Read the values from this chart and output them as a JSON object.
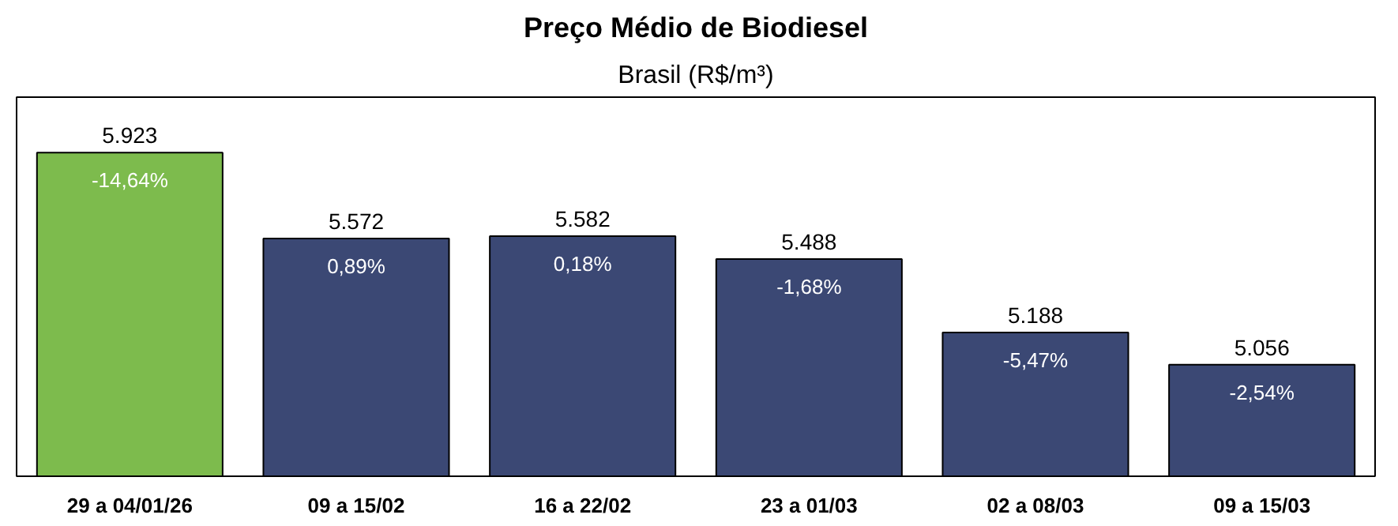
{
  "chart_data": {
    "type": "bar",
    "title": "Preço Médio de Biodiesel",
    "subtitle": "Brasil (R$/m³)",
    "categories": [
      "29 a 04/01/26",
      "09 a 15/02",
      "16 a 22/02",
      "23 a 01/03",
      "02 a 08/03",
      "09 a 15/03"
    ],
    "values": [
      5923,
      5572,
      5582,
      5488,
      5188,
      5056
    ],
    "value_labels": [
      "5.923",
      "5.572",
      "5.582",
      "5.488",
      "5.188",
      "5.056"
    ],
    "colors": [
      "#7dbb4d",
      "#3b4874",
      "#3b4874",
      "#3b4874",
      "#3b4874",
      "#3b4874"
    ],
    "ylim": [
      4600,
      6150
    ],
    "tick_labels": "x",
    "grid": false,
    "annotations": [
      {
        "text": "-14,64%",
        "x": "29 a 04/01/26",
        "y": 5923
      },
      {
        "text": "0,89%",
        "x": "09 a 15/02",
        "y": 5572
      },
      {
        "text": "0,18%",
        "x": "16 a 22/02",
        "y": 5582
      },
      {
        "text": "-1,68%",
        "x": "23 a 01/03",
        "y": 5488
      },
      {
        "text": "-5,47%",
        "x": "02 a 08/03",
        "y": 5188
      },
      {
        "text": "-2,54%",
        "x": "09 a 15/03",
        "y": 5056
      }
    ]
  }
}
